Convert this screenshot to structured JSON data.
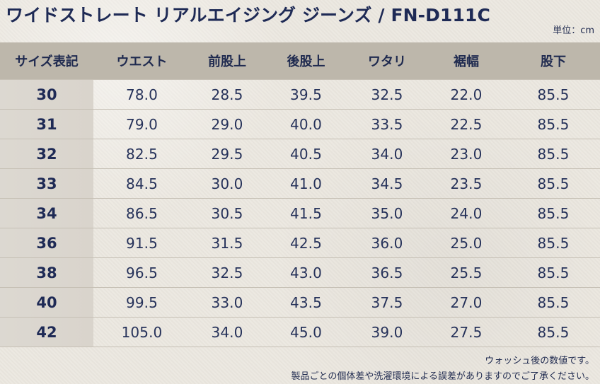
{
  "document": {
    "title": "ワイドストレート リアルエイジング ジーンズ / FN-D111C",
    "unit": "単位：cm"
  },
  "table": {
    "headers": [
      "サイズ表記",
      "ウエスト",
      "前股上",
      "後股上",
      "ワタリ",
      "裾幅",
      "股下"
    ],
    "rows": [
      [
        "30",
        "78.0",
        "28.5",
        "39.5",
        "32.5",
        "22.0",
        "85.5"
      ],
      [
        "31",
        "79.0",
        "29.0",
        "40.0",
        "33.5",
        "22.5",
        "85.5"
      ],
      [
        "32",
        "82.5",
        "29.5",
        "40.5",
        "34.0",
        "23.0",
        "85.5"
      ],
      [
        "33",
        "84.5",
        "30.0",
        "41.0",
        "34.5",
        "23.5",
        "85.5"
      ],
      [
        "34",
        "86.5",
        "30.5",
        "41.5",
        "35.0",
        "24.0",
        "85.5"
      ],
      [
        "36",
        "91.5",
        "31.5",
        "42.5",
        "36.0",
        "25.0",
        "85.5"
      ],
      [
        "38",
        "96.5",
        "32.5",
        "43.0",
        "36.5",
        "25.5",
        "85.5"
      ],
      [
        "40",
        "99.5",
        "33.0",
        "43.5",
        "37.5",
        "27.0",
        "85.5"
      ],
      [
        "42",
        "105.0",
        "34.0",
        "45.0",
        "39.0",
        "27.5",
        "85.5"
      ]
    ]
  },
  "notes": {
    "line1": "ウォッシュ後の数値です。",
    "line2": "製品ごとの個体差や洗濯環境による誤差がありますのでご了承ください。"
  },
  "colors": {
    "background": "#ebe7df",
    "header": "#bdb7ab",
    "sizeColumn": "#dcd8d1",
    "text": "#1f2a4f"
  }
}
